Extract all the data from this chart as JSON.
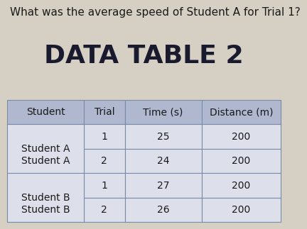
{
  "question": "What was the average speed of Student A for Trial 1?",
  "title": "DATA TABLE 2",
  "background_color": "#d6d0c4",
  "table_header": [
    "Student",
    "Trial",
    "Time (s)",
    "Distance (m)"
  ],
  "table_data": [
    [
      "",
      "1",
      "25",
      "200"
    ],
    [
      "Student A",
      "2",
      "24",
      "200"
    ],
    [
      "",
      "1",
      "27",
      "200"
    ],
    [
      "Student B",
      "2",
      "26",
      "200"
    ]
  ],
  "header_bg": "#b0b8d0",
  "cell_bg": "#dde0ea",
  "question_fontsize": 11,
  "title_fontsize": 26,
  "table_fontsize": 10,
  "student_spans": [
    [
      "Student A",
      0,
      2
    ],
    [
      "Student B",
      2,
      4
    ]
  ]
}
